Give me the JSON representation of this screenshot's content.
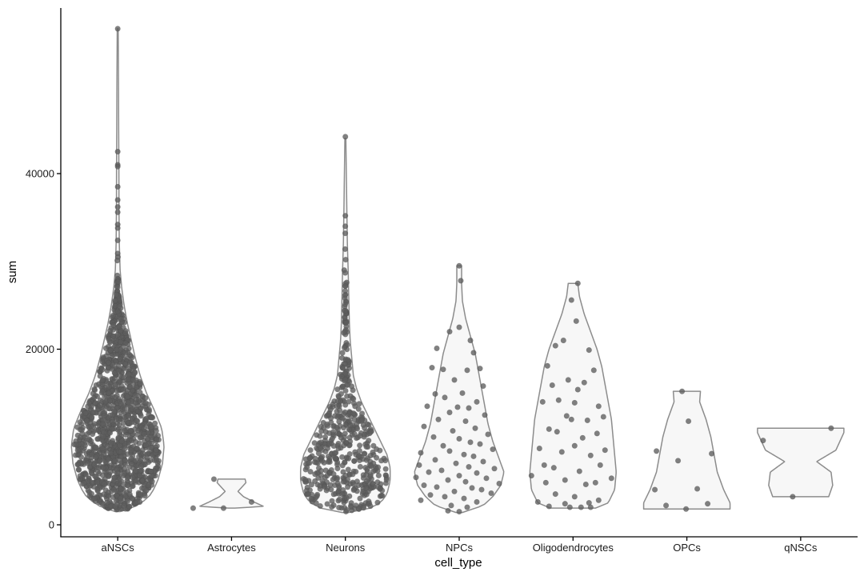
{
  "chart_data": {
    "type": "violin",
    "title": "",
    "xlabel": "cell_type",
    "ylabel": "sum",
    "ylim": [
      -800,
      57800
    ],
    "yticks": [
      0,
      20000,
      40000
    ],
    "ytick_labels": [
      "0",
      "20000",
      "40000"
    ],
    "grid": false,
    "legend": "none",
    "categories": [
      "aNSCs",
      "Astrocytes",
      "Neurons",
      "NPCs",
      "Oligodendrocytes",
      "OPCs",
      "qNSCs"
    ],
    "colors": {
      "violin_fill": "#f7f7f7",
      "violin_stroke": "#8c8c8c",
      "point": "#5e5e5e",
      "axis": "#000000"
    },
    "violins": [
      {
        "category": "aNSCs",
        "n_points": 1350,
        "profile": [
          [
            1500,
            3
          ],
          [
            1800,
            16
          ],
          [
            2500,
            30
          ],
          [
            3500,
            42
          ],
          [
            5000,
            50
          ],
          [
            7000,
            56
          ],
          [
            9000,
            58
          ],
          [
            11000,
            55
          ],
          [
            13000,
            46
          ],
          [
            15000,
            36
          ],
          [
            17000,
            28
          ],
          [
            19000,
            22
          ],
          [
            21000,
            17
          ],
          [
            23000,
            12
          ],
          [
            25000,
            8
          ],
          [
            27000,
            5
          ],
          [
            29000,
            3
          ],
          [
            32000,
            2
          ],
          [
            36000,
            1.6
          ],
          [
            40000,
            1.5
          ],
          [
            45000,
            1.2
          ],
          [
            50000,
            1
          ],
          [
            56500,
            0.6
          ]
        ],
        "outliers": [
          56500,
          42500,
          41000,
          40800,
          38500,
          37000,
          36200,
          35600,
          34200,
          33800,
          32400,
          30900,
          30500,
          30100,
          28400,
          28000
        ]
      },
      {
        "category": "Astrocytes",
        "n_points": 4,
        "profile": [
          [
            1900,
            4
          ],
          [
            2100,
            40
          ],
          [
            2600,
            28
          ],
          [
            3200,
            15
          ],
          [
            3800,
            8
          ],
          [
            4300,
            13
          ],
          [
            4800,
            18
          ],
          [
            5200,
            17
          ]
        ],
        "points": [
          [
            -22,
            5200
          ],
          [
            -48,
            1900
          ],
          [
            -10,
            1900
          ],
          [
            25,
            2600
          ]
        ]
      },
      {
        "category": "Neurons",
        "n_points": 520,
        "profile": [
          [
            1400,
            4
          ],
          [
            1800,
            28
          ],
          [
            2500,
            44
          ],
          [
            3500,
            52
          ],
          [
            5000,
            56
          ],
          [
            6500,
            56
          ],
          [
            8000,
            52
          ],
          [
            9500,
            44
          ],
          [
            11000,
            36
          ],
          [
            12500,
            28
          ],
          [
            14000,
            20
          ],
          [
            15500,
            14
          ],
          [
            17000,
            10
          ],
          [
            19000,
            8
          ],
          [
            21000,
            6
          ],
          [
            23000,
            5
          ],
          [
            25000,
            4.5
          ],
          [
            27000,
            4
          ],
          [
            29000,
            3.5
          ],
          [
            32000,
            2.5
          ],
          [
            36000,
            1.8
          ],
          [
            40000,
            1.2
          ],
          [
            44000,
            0.6
          ]
        ],
        "outliers": [
          44200,
          35200,
          34000,
          33200,
          31400,
          30200,
          29000,
          28700,
          27600
        ]
      },
      {
        "category": "NPCs",
        "n_points": 95,
        "profile": [
          [
            1400,
            4
          ],
          [
            2200,
            30
          ],
          [
            3200,
            42
          ],
          [
            4500,
            52
          ],
          [
            6000,
            56
          ],
          [
            7500,
            50
          ],
          [
            9500,
            42
          ],
          [
            11500,
            36
          ],
          [
            13500,
            32
          ],
          [
            15500,
            28
          ],
          [
            17500,
            24
          ],
          [
            19500,
            20
          ],
          [
            21500,
            14
          ],
          [
            23500,
            8
          ],
          [
            25500,
            4
          ],
          [
            27500,
            3
          ],
          [
            29500,
            3
          ]
        ],
        "points": [
          [
            0,
            29500
          ],
          [
            2,
            27800
          ],
          [
            0,
            22500
          ],
          [
            -12,
            22000
          ],
          [
            14,
            21000
          ],
          [
            -28,
            20100
          ],
          [
            18,
            19600
          ],
          [
            -34,
            17900
          ],
          [
            -20,
            17700
          ],
          [
            10,
            17600
          ],
          [
            26,
            17800
          ],
          [
            -6,
            16500
          ],
          [
            30,
            15800
          ],
          [
            -30,
            14900
          ],
          [
            4,
            15000
          ],
          [
            -18,
            14500
          ],
          [
            22,
            14000
          ],
          [
            -40,
            13500
          ],
          [
            -2,
            13400
          ],
          [
            12,
            13300
          ],
          [
            -12,
            12800
          ],
          [
            32,
            12500
          ],
          [
            -26,
            12000
          ],
          [
            8,
            11800
          ],
          [
            -44,
            11200
          ],
          [
            20,
            11000
          ],
          [
            -8,
            10700
          ],
          [
            36,
            10300
          ],
          [
            -32,
            10000
          ],
          [
            0,
            9800
          ],
          [
            14,
            9400
          ],
          [
            -20,
            9000
          ],
          [
            26,
            9200
          ],
          [
            42,
            8600
          ],
          [
            -48,
            8200
          ],
          [
            -12,
            8400
          ],
          [
            6,
            8000
          ],
          [
            18,
            7800
          ],
          [
            -30,
            7400
          ],
          [
            30,
            7200
          ],
          [
            -4,
            7000
          ],
          [
            -50,
            6800
          ],
          [
            12,
            6600
          ],
          [
            44,
            6400
          ],
          [
            -22,
            6200
          ],
          [
            -38,
            6000
          ],
          [
            22,
            5900
          ],
          [
            0,
            5600
          ],
          [
            -54,
            5400
          ],
          [
            34,
            5300
          ],
          [
            -14,
            5100
          ],
          [
            8,
            4900
          ],
          [
            50,
            4700
          ],
          [
            -44,
            4500
          ],
          [
            -28,
            4300
          ],
          [
            16,
            4200
          ],
          [
            28,
            4000
          ],
          [
            -6,
            3800
          ],
          [
            40,
            3600
          ],
          [
            -36,
            3400
          ],
          [
            -18,
            3200
          ],
          [
            6,
            3000
          ],
          [
            -48,
            2800
          ],
          [
            22,
            2600
          ],
          [
            -10,
            2200
          ],
          [
            10,
            2000
          ],
          [
            -14,
            1600
          ],
          [
            0,
            1500
          ]
        ]
      },
      {
        "category": "Oligodendrocytes",
        "n_points": 55,
        "profile": [
          [
            1900,
            28
          ],
          [
            2500,
            44
          ],
          [
            4000,
            52
          ],
          [
            6000,
            54
          ],
          [
            8000,
            52
          ],
          [
            10000,
            50
          ],
          [
            12000,
            48
          ],
          [
            14000,
            44
          ],
          [
            16000,
            40
          ],
          [
            18000,
            36
          ],
          [
            20000,
            30
          ],
          [
            22000,
            22
          ],
          [
            24000,
            14
          ],
          [
            26000,
            8
          ],
          [
            27500,
            6
          ]
        ],
        "points": [
          [
            6,
            27500
          ],
          [
            -2,
            25600
          ],
          [
            4,
            23200
          ],
          [
            -12,
            21000
          ],
          [
            -22,
            20400
          ],
          [
            20,
            19900
          ],
          [
            -32,
            18100
          ],
          [
            26,
            17600
          ],
          [
            -6,
            16500
          ],
          [
            14,
            16200
          ],
          [
            -26,
            15900
          ],
          [
            6,
            15400
          ],
          [
            -18,
            14200
          ],
          [
            -38,
            14000
          ],
          [
            2,
            13900
          ],
          [
            32,
            13500
          ],
          [
            -8,
            12400
          ],
          [
            38,
            12300
          ],
          [
            -2,
            12000
          ],
          [
            18,
            11900
          ],
          [
            -30,
            10900
          ],
          [
            30,
            10400
          ],
          [
            -20,
            10600
          ],
          [
            12,
            9900
          ],
          [
            2,
            9000
          ],
          [
            -42,
            8700
          ],
          [
            40,
            8500
          ],
          [
            -14,
            8300
          ],
          [
            22,
            7900
          ],
          [
            -36,
            6800
          ],
          [
            34,
            6800
          ],
          [
            -24,
            6500
          ],
          [
            8,
            6100
          ],
          [
            48,
            5300
          ],
          [
            -10,
            5100
          ],
          [
            -52,
            5600
          ],
          [
            -34,
            4800
          ],
          [
            28,
            4800
          ],
          [
            16,
            4600
          ],
          [
            -44,
            2600
          ],
          [
            -22,
            3500
          ],
          [
            -30,
            2100
          ],
          [
            -10,
            2400
          ],
          [
            2,
            3200
          ],
          [
            10,
            2000
          ],
          [
            20,
            2500
          ],
          [
            32,
            2800
          ],
          [
            -4,
            2000
          ],
          [
            22,
            2000
          ]
        ]
      },
      {
        "category": "OPCs",
        "n_points": 13,
        "profile": [
          [
            1800,
            54
          ],
          [
            2500,
            54
          ],
          [
            4000,
            46
          ],
          [
            6000,
            38
          ],
          [
            8000,
            34
          ],
          [
            10000,
            30
          ],
          [
            12000,
            24
          ],
          [
            14000,
            16
          ],
          [
            15200,
            17
          ]
        ],
        "points": [
          [
            -6,
            15200
          ],
          [
            2,
            11800
          ],
          [
            -38,
            8400
          ],
          [
            31,
            8100
          ],
          [
            -11,
            7300
          ],
          [
            -40,
            4000
          ],
          [
            13,
            4100
          ],
          [
            -26,
            2200
          ],
          [
            26,
            2400
          ],
          [
            -1,
            1800
          ]
        ]
      },
      {
        "category": "qNSCs",
        "n_points": 3,
        "profile": [
          [
            3200,
            35
          ],
          [
            4500,
            40
          ],
          [
            6000,
            38
          ],
          [
            7200,
            20
          ],
          [
            8500,
            44
          ],
          [
            10500,
            54
          ],
          [
            11000,
            54
          ]
        ],
        "points": [
          [
            -47,
            9600
          ],
          [
            38,
            11000
          ],
          [
            -10,
            3200
          ]
        ]
      }
    ]
  }
}
